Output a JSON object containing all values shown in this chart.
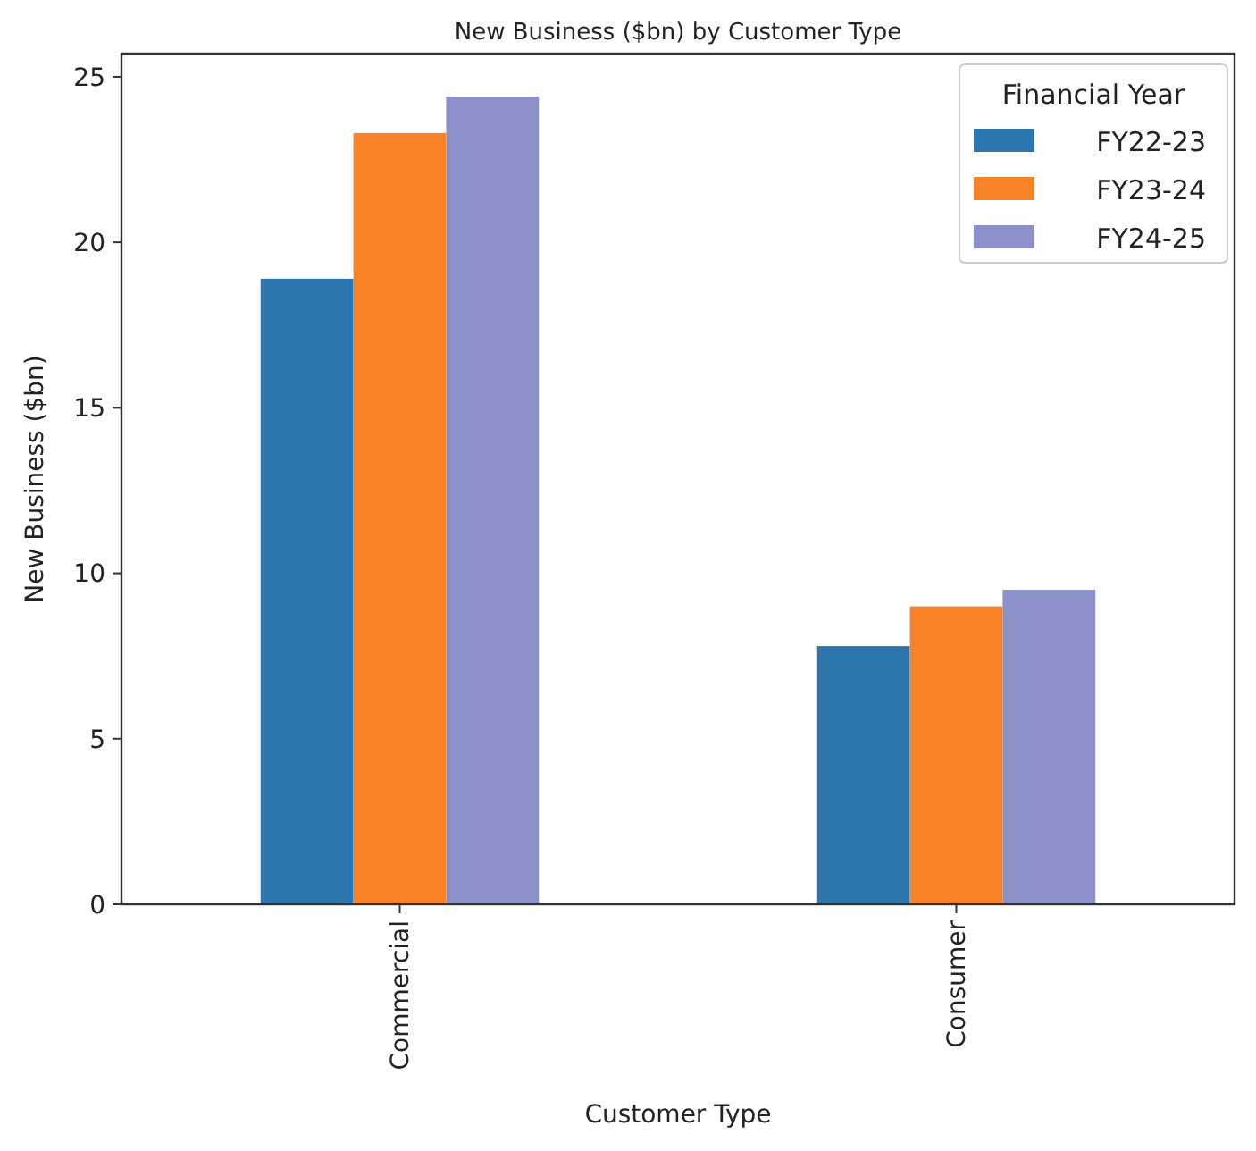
{
  "chart_data": {
    "type": "bar",
    "title": "New Business ($bn) by Customer Type",
    "xlabel": "Customer Type",
    "ylabel": "New Business ($bn)",
    "legend_title": "Financial Year",
    "categories": [
      "Commercial",
      "Consumer"
    ],
    "series": [
      {
        "name": "FY22-23",
        "color": "#2c76b0",
        "values": [
          18.9,
          7.8
        ]
      },
      {
        "name": "FY23-24",
        "color": "#f78228",
        "values": [
          23.3,
          9.0
        ]
      },
      {
        "name": "FY24-25",
        "color": "#8b90c8",
        "values": [
          24.4,
          9.5
        ]
      }
    ],
    "ylim": [
      0,
      25.7
    ],
    "yticks": [
      0,
      5,
      10,
      15,
      20,
      25
    ],
    "legend": "top right",
    "grid": false
  }
}
